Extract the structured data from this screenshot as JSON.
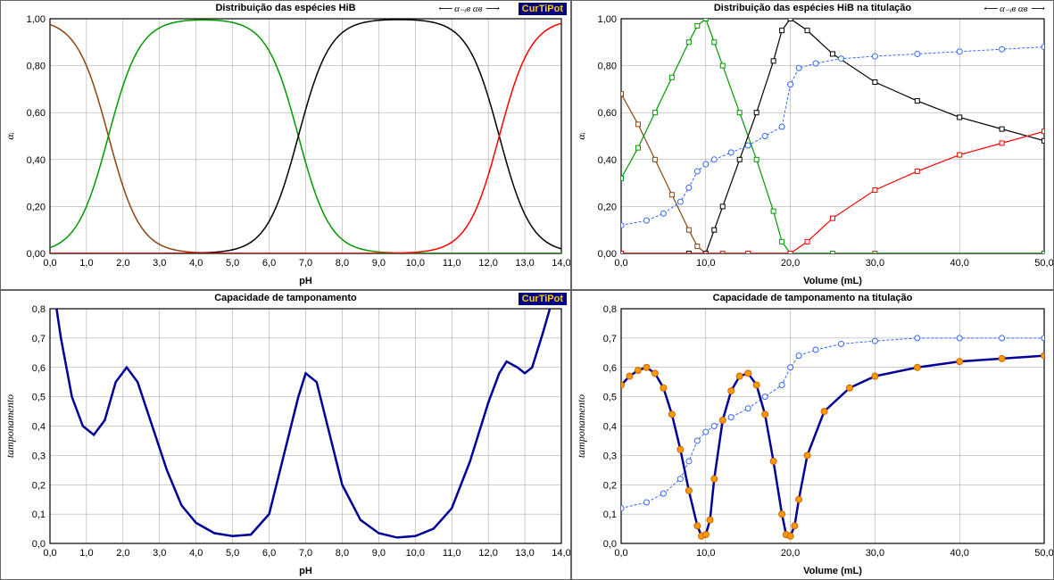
{
  "logo_text": "CurTiPot",
  "logo_bg": "#000080",
  "logo_fg": "#ffcc00",
  "alpha_nav_text": "⟵ α₋ᵢв   αв ⟶",
  "chart1": {
    "title": "Distribuição das espécies HiB",
    "xlabel": "pH",
    "ylabel": "αᵢ",
    "xlim": [
      0,
      14
    ],
    "ylim": [
      0,
      1.0
    ],
    "xtick_step": 1.0,
    "ytick_step": 0.2,
    "xtick_fmt": "fixed1comma",
    "ytick_fmt": "fixed2comma",
    "grid_color": "#999999",
    "bg": "#ffffff",
    "series": [
      {
        "color": "#8b4513",
        "width": 1.5,
        "pKa": 1.6,
        "type": "acid",
        "markers": false
      },
      {
        "color": "#009900",
        "width": 1.5,
        "pKa1": 1.6,
        "pKa2": 6.8,
        "type": "amph",
        "markers": false
      },
      {
        "color": "#000000",
        "width": 1.5,
        "pKa1": 6.8,
        "pKa2": 12.3,
        "type": "amph",
        "markers": false
      },
      {
        "color": "#ff0000",
        "width": 1.5,
        "pKa": 12.3,
        "type": "base",
        "markers": false
      }
    ]
  },
  "chart2": {
    "title": "Distribuição das espécies HiB na titulação",
    "xlabel": "Volume (mL)",
    "ylabel": "αᵢ",
    "xlim": [
      0,
      50
    ],
    "ylim": [
      0,
      1.0
    ],
    "xtick_step": 10.0,
    "ytick_step": 0.2,
    "xtick_fmt": "fixed1comma",
    "ytick_fmt": "fixed2comma",
    "grid_color": "#999999",
    "bg": "#ffffff",
    "series": [
      {
        "color": "#8b4513",
        "width": 1.2,
        "markers": true,
        "marker": "square",
        "data": [
          [
            0,
            0.68
          ],
          [
            2,
            0.55
          ],
          [
            4,
            0.4
          ],
          [
            6,
            0.25
          ],
          [
            8,
            0.1
          ],
          [
            9,
            0.03
          ],
          [
            10,
            0.0
          ],
          [
            12,
            0.0
          ],
          [
            15,
            0.0
          ],
          [
            20,
            0.0
          ],
          [
            30,
            0.0
          ],
          [
            50,
            0.0
          ]
        ]
      },
      {
        "color": "#009900",
        "width": 1.2,
        "markers": true,
        "marker": "square",
        "data": [
          [
            0,
            0.32
          ],
          [
            2,
            0.45
          ],
          [
            4,
            0.6
          ],
          [
            6,
            0.75
          ],
          [
            8,
            0.9
          ],
          [
            9,
            0.97
          ],
          [
            10,
            1.0
          ],
          [
            11,
            0.9
          ],
          [
            12,
            0.8
          ],
          [
            14,
            0.6
          ],
          [
            16,
            0.4
          ],
          [
            18,
            0.18
          ],
          [
            19,
            0.05
          ],
          [
            20,
            0.0
          ],
          [
            25,
            0.0
          ],
          [
            50,
            0.0
          ]
        ]
      },
      {
        "color": "#000000",
        "width": 1.2,
        "markers": true,
        "marker": "square",
        "data": [
          [
            0,
            0.0
          ],
          [
            8,
            0.0
          ],
          [
            10,
            0.0
          ],
          [
            11,
            0.1
          ],
          [
            12,
            0.2
          ],
          [
            14,
            0.4
          ],
          [
            16,
            0.6
          ],
          [
            18,
            0.82
          ],
          [
            19,
            0.95
          ],
          [
            20,
            1.0
          ],
          [
            22,
            0.95
          ],
          [
            25,
            0.85
          ],
          [
            30,
            0.73
          ],
          [
            35,
            0.65
          ],
          [
            40,
            0.58
          ],
          [
            45,
            0.53
          ],
          [
            50,
            0.48
          ]
        ]
      },
      {
        "color": "#ff0000",
        "width": 1.2,
        "markers": true,
        "marker": "square",
        "data": [
          [
            0,
            0.0
          ],
          [
            15,
            0.0
          ],
          [
            20,
            0.0
          ],
          [
            22,
            0.05
          ],
          [
            25,
            0.15
          ],
          [
            30,
            0.27
          ],
          [
            35,
            0.35
          ],
          [
            40,
            0.42
          ],
          [
            45,
            0.47
          ],
          [
            50,
            0.52
          ]
        ]
      },
      {
        "color": "#3366ff",
        "width": 1.0,
        "markers": true,
        "marker": "circle",
        "dash": "3,2",
        "data": [
          [
            0,
            0.12
          ],
          [
            3,
            0.14
          ],
          [
            5,
            0.17
          ],
          [
            7,
            0.22
          ],
          [
            8,
            0.28
          ],
          [
            9,
            0.35
          ],
          [
            10,
            0.38
          ],
          [
            11,
            0.4
          ],
          [
            13,
            0.43
          ],
          [
            15,
            0.46
          ],
          [
            17,
            0.5
          ],
          [
            19,
            0.54
          ],
          [
            20,
            0.72
          ],
          [
            21,
            0.79
          ],
          [
            23,
            0.81
          ],
          [
            26,
            0.83
          ],
          [
            30,
            0.84
          ],
          [
            35,
            0.85
          ],
          [
            40,
            0.86
          ],
          [
            45,
            0.87
          ],
          [
            50,
            0.88
          ]
        ]
      }
    ]
  },
  "chart3": {
    "title": "Capacidade de tamponamento",
    "xlabel": "pH",
    "ylabel": "tamponamento",
    "xlim": [
      0,
      14
    ],
    "ylim": [
      0,
      0.8
    ],
    "xtick_step": 1.0,
    "ytick_step": 0.1,
    "xtick_fmt": "fixed1comma",
    "ytick_fmt": "fixed1comma",
    "grid_color": "#999999",
    "bg": "#ffffff",
    "series": [
      {
        "color": "#000099",
        "width": 2.5,
        "markers": false,
        "data": [
          [
            0.0,
            0.95
          ],
          [
            0.3,
            0.7
          ],
          [
            0.6,
            0.5
          ],
          [
            0.9,
            0.4
          ],
          [
            1.2,
            0.37
          ],
          [
            1.5,
            0.42
          ],
          [
            1.8,
            0.55
          ],
          [
            2.1,
            0.6
          ],
          [
            2.4,
            0.55
          ],
          [
            2.8,
            0.4
          ],
          [
            3.2,
            0.25
          ],
          [
            3.6,
            0.13
          ],
          [
            4.0,
            0.07
          ],
          [
            4.5,
            0.035
          ],
          [
            5.0,
            0.025
          ],
          [
            5.5,
            0.03
          ],
          [
            6.0,
            0.1
          ],
          [
            6.4,
            0.3
          ],
          [
            6.8,
            0.5
          ],
          [
            7.0,
            0.58
          ],
          [
            7.3,
            0.55
          ],
          [
            7.6,
            0.4
          ],
          [
            8.0,
            0.2
          ],
          [
            8.5,
            0.08
          ],
          [
            9.0,
            0.035
          ],
          [
            9.5,
            0.02
          ],
          [
            10.0,
            0.025
          ],
          [
            10.5,
            0.05
          ],
          [
            11.0,
            0.12
          ],
          [
            11.5,
            0.28
          ],
          [
            12.0,
            0.48
          ],
          [
            12.3,
            0.58
          ],
          [
            12.5,
            0.62
          ],
          [
            12.8,
            0.6
          ],
          [
            13.0,
            0.58
          ],
          [
            13.2,
            0.6
          ],
          [
            13.5,
            0.72
          ],
          [
            13.8,
            0.85
          ],
          [
            14.0,
            0.95
          ]
        ]
      }
    ]
  },
  "chart4": {
    "title": "Capacidade de tamponamento na titulação",
    "xlabel": "Volume (mL)",
    "ylabel": "tamponamento",
    "xlim": [
      0,
      50
    ],
    "ylim": [
      0,
      0.8
    ],
    "xtick_step": 10.0,
    "ytick_step": 0.1,
    "xtick_fmt": "fixed1comma",
    "ytick_fmt": "fixed1comma",
    "grid_color": "#999999",
    "bg": "#ffffff",
    "series": [
      {
        "color": "#3366ff",
        "width": 1.0,
        "markers": true,
        "marker": "circle",
        "dash": "3,2",
        "data": [
          [
            0,
            0.12
          ],
          [
            3,
            0.14
          ],
          [
            5,
            0.17
          ],
          [
            7,
            0.22
          ],
          [
            8,
            0.28
          ],
          [
            9,
            0.35
          ],
          [
            10,
            0.38
          ],
          [
            11,
            0.4
          ],
          [
            13,
            0.43
          ],
          [
            15,
            0.46
          ],
          [
            17,
            0.5
          ],
          [
            19,
            0.54
          ],
          [
            20,
            0.6
          ],
          [
            21,
            0.64
          ],
          [
            23,
            0.66
          ],
          [
            26,
            0.68
          ],
          [
            30,
            0.69
          ],
          [
            35,
            0.7
          ],
          [
            40,
            0.7
          ],
          [
            45,
            0.7
          ],
          [
            50,
            0.7
          ]
        ]
      },
      {
        "color": "#000099",
        "width": 2.5,
        "markers": true,
        "marker": "circleOrange",
        "data": [
          [
            0,
            0.54
          ],
          [
            1,
            0.57
          ],
          [
            2,
            0.59
          ],
          [
            3,
            0.6
          ],
          [
            4,
            0.58
          ],
          [
            5,
            0.53
          ],
          [
            6,
            0.44
          ],
          [
            7,
            0.32
          ],
          [
            8,
            0.18
          ],
          [
            9,
            0.06
          ],
          [
            9.5,
            0.025
          ],
          [
            10,
            0.03
          ],
          [
            10.5,
            0.08
          ],
          [
            11,
            0.22
          ],
          [
            12,
            0.42
          ],
          [
            13,
            0.52
          ],
          [
            14,
            0.57
          ],
          [
            15,
            0.58
          ],
          [
            16,
            0.54
          ],
          [
            17,
            0.44
          ],
          [
            18,
            0.28
          ],
          [
            19,
            0.1
          ],
          [
            19.5,
            0.03
          ],
          [
            20,
            0.025
          ],
          [
            20.5,
            0.06
          ],
          [
            21,
            0.15
          ],
          [
            22,
            0.3
          ],
          [
            24,
            0.45
          ],
          [
            27,
            0.53
          ],
          [
            30,
            0.57
          ],
          [
            35,
            0.6
          ],
          [
            40,
            0.62
          ],
          [
            45,
            0.63
          ],
          [
            50,
            0.64
          ]
        ]
      }
    ]
  }
}
